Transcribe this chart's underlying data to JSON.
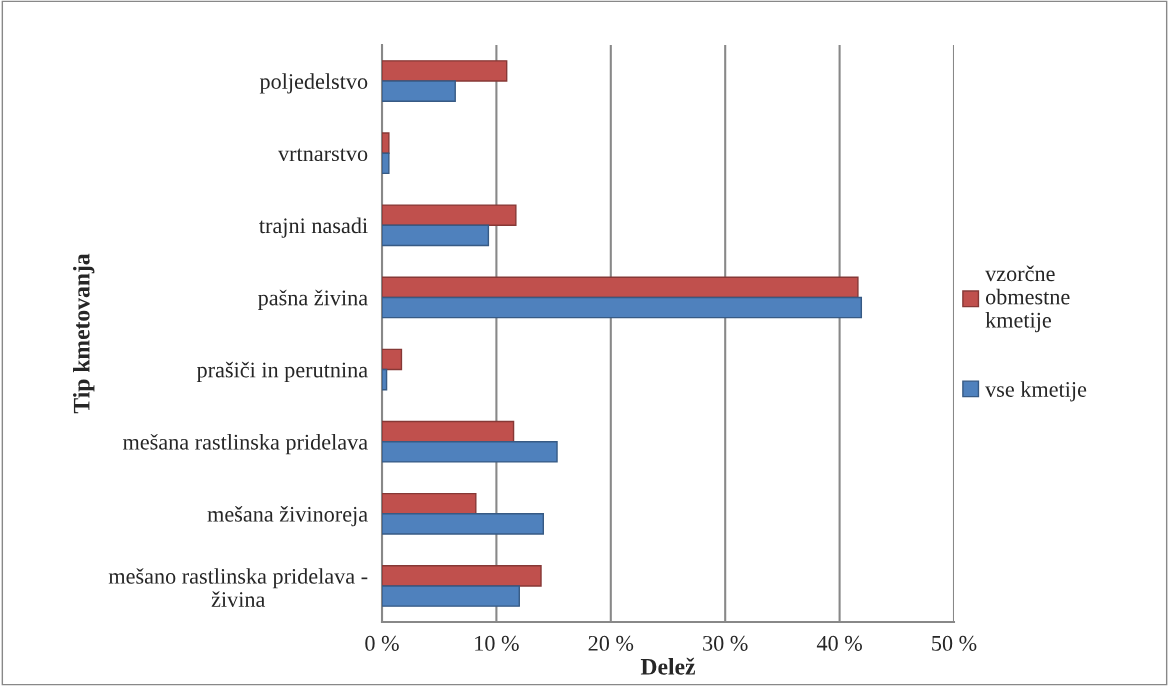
{
  "chart_data": {
    "type": "bar",
    "orientation": "horizontal",
    "xlabel": "Delež",
    "ylabel": "Tip kmetovanja",
    "categories": [
      "poljedelstvo",
      "vrtnarstvo",
      "trajni nasadi",
      "pašna živina",
      "prašiči in perutnina",
      "mešana rastlinska pridelava",
      "mešana živinoreja",
      "mešano rastlinska pridelava -\nživina"
    ],
    "series": [
      {
        "name": "vzorčne\nobmestne\nkmetije",
        "color": "#c0504d",
        "values": [
          10.9,
          0.6,
          11.7,
          41.6,
          1.7,
          11.5,
          8.2,
          13.9
        ]
      },
      {
        "name": "vse kmetije",
        "color": "#4f81bd",
        "values": [
          6.4,
          0.6,
          9.3,
          41.9,
          0.4,
          15.3,
          14.1,
          12.0
        ]
      }
    ],
    "xlim": [
      0,
      50
    ],
    "xticks": [
      {
        "value": 0,
        "label": "0 %"
      },
      {
        "value": 10,
        "label": "10 %"
      },
      {
        "value": 20,
        "label": "20 %"
      },
      {
        "value": 30,
        "label": "30 %"
      },
      {
        "value": 40,
        "label": "40 %"
      },
      {
        "value": 50,
        "label": "50 %"
      }
    ],
    "grid": "x",
    "legend": "right"
  }
}
